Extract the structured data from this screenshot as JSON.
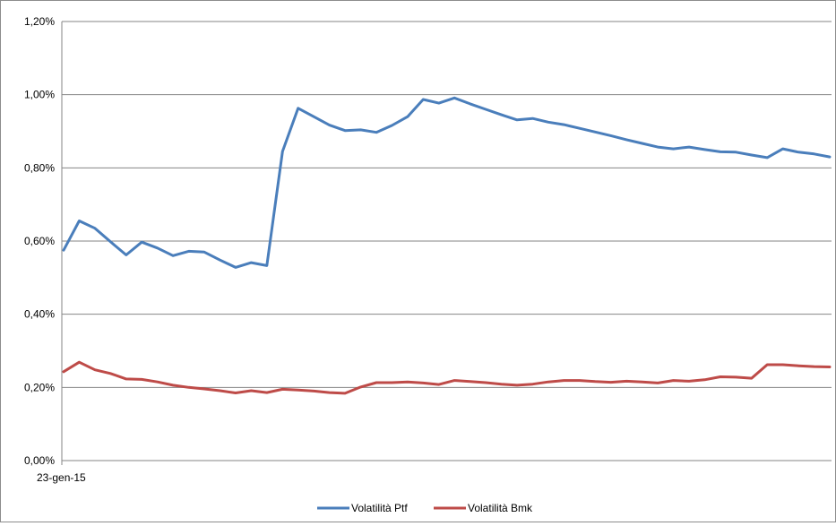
{
  "chart_data": {
    "type": "line",
    "title": "",
    "xlabel": "",
    "ylabel": "",
    "x_tick_labels": [
      "23-gen-15"
    ],
    "y_ticks": [
      "0,00%",
      "0,20%",
      "0,40%",
      "0,60%",
      "0,80%",
      "1,00%",
      "1,20%"
    ],
    "ylim": [
      0,
      1.2
    ],
    "grid": true,
    "legend_position": "bottom",
    "series": [
      {
        "name": "Volatilità Ptf",
        "color": "#4a7ebb",
        "values": [
          0.575,
          0.655,
          0.635,
          0.598,
          0.562,
          0.597,
          0.581,
          0.56,
          0.572,
          0.57,
          0.548,
          0.528,
          0.541,
          0.533,
          0.845,
          0.963,
          0.94,
          0.917,
          0.902,
          0.904,
          0.897,
          0.916,
          0.94,
          0.987,
          0.977,
          0.991,
          0.975,
          0.96,
          0.945,
          0.931,
          0.935,
          0.925,
          0.918,
          0.908,
          0.898,
          0.888,
          0.877,
          0.867,
          0.857,
          0.852,
          0.857,
          0.85,
          0.844,
          0.843,
          0.835,
          0.828,
          0.852,
          0.843,
          0.838,
          0.83
        ]
      },
      {
        "name": "Volatilità Bmk",
        "color": "#be4b48",
        "values": [
          0.243,
          0.269,
          0.248,
          0.238,
          0.223,
          0.222,
          0.215,
          0.206,
          0.2,
          0.196,
          0.191,
          0.185,
          0.191,
          0.186,
          0.195,
          0.193,
          0.19,
          0.186,
          0.184,
          0.201,
          0.213,
          0.213,
          0.215,
          0.212,
          0.208,
          0.219,
          0.216,
          0.213,
          0.209,
          0.206,
          0.209,
          0.215,
          0.219,
          0.219,
          0.216,
          0.214,
          0.217,
          0.215,
          0.212,
          0.219,
          0.217,
          0.221,
          0.229,
          0.228,
          0.225,
          0.262,
          0.262,
          0.259,
          0.257,
          0.256
        ]
      }
    ]
  }
}
